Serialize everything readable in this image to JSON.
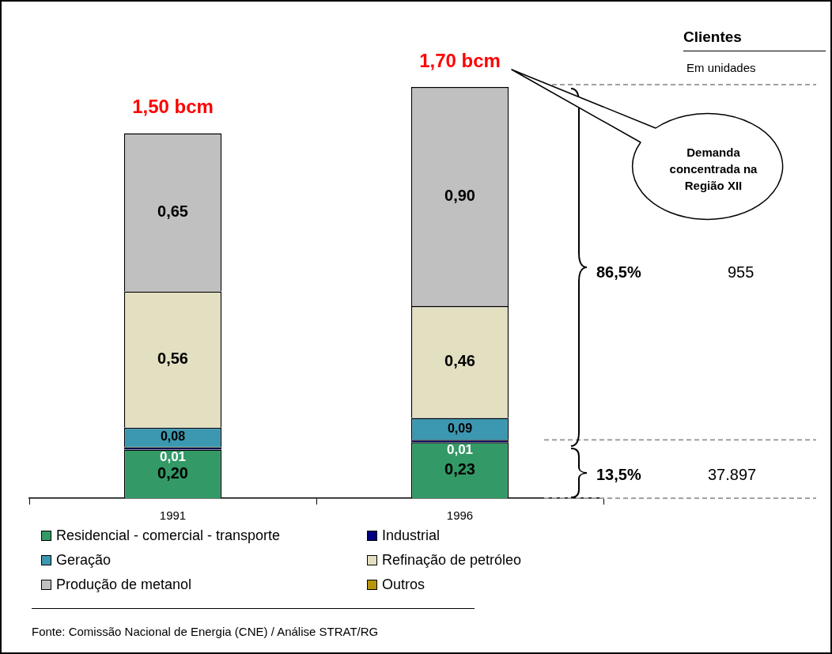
{
  "chart_data": {
    "type": "bar",
    "stacked": true,
    "categories": [
      "1991",
      "1996"
    ],
    "series": [
      {
        "name": "Residencial - comercial - transporte",
        "color": "#339966",
        "values": [
          0.2,
          0.23
        ],
        "value_labels": [
          "0,20",
          "0,23"
        ]
      },
      {
        "name": "Industrial",
        "color": "#000080",
        "values": [
          0.01,
          0.01
        ],
        "value_labels": [
          "0,01",
          "0,01"
        ]
      },
      {
        "name": "Geração",
        "color": "#3c97b0",
        "values": [
          0.08,
          0.09
        ],
        "value_labels": [
          "0,08",
          "0,09"
        ]
      },
      {
        "name": "Refinação de petróleo",
        "color": "#e3dfc1",
        "values": [
          0.56,
          0.46
        ],
        "value_labels": [
          "0,56",
          "0,46"
        ]
      },
      {
        "name": "Produção de metanol",
        "color": "#c0c0c0",
        "values": [
          0.65,
          0.9
        ],
        "value_labels": [
          "0,65",
          "0,90"
        ]
      },
      {
        "name": "Outros",
        "color": "#b8960c",
        "values": [
          0,
          0
        ],
        "value_labels": [
          null,
          null
        ]
      }
    ],
    "totals": [
      "1,50 bcm",
      "1,70 bcm"
    ],
    "ref_lines": [
      {
        "axis": "y",
        "value": 1.7,
        "color": "#a0a0a0",
        "line_style": "dashed"
      },
      {
        "axis": "y",
        "value": 0.24,
        "color": "#a0a0a0",
        "line_style": "dashed"
      },
      {
        "axis": "y",
        "value": 0,
        "color": "#a0a0a0",
        "line_style": "dashed"
      }
    ],
    "legend": "bottom",
    "grid": false,
    "annotations": [
      "Clientes",
      "Em unidades",
      "Demanda concentrada na Região XII",
      "86,5%",
      "955",
      "13,5%",
      "37.897",
      "Fonte: Comissão Nacional de Energia (CNE) / Análise STRAT/RG"
    ]
  }
}
